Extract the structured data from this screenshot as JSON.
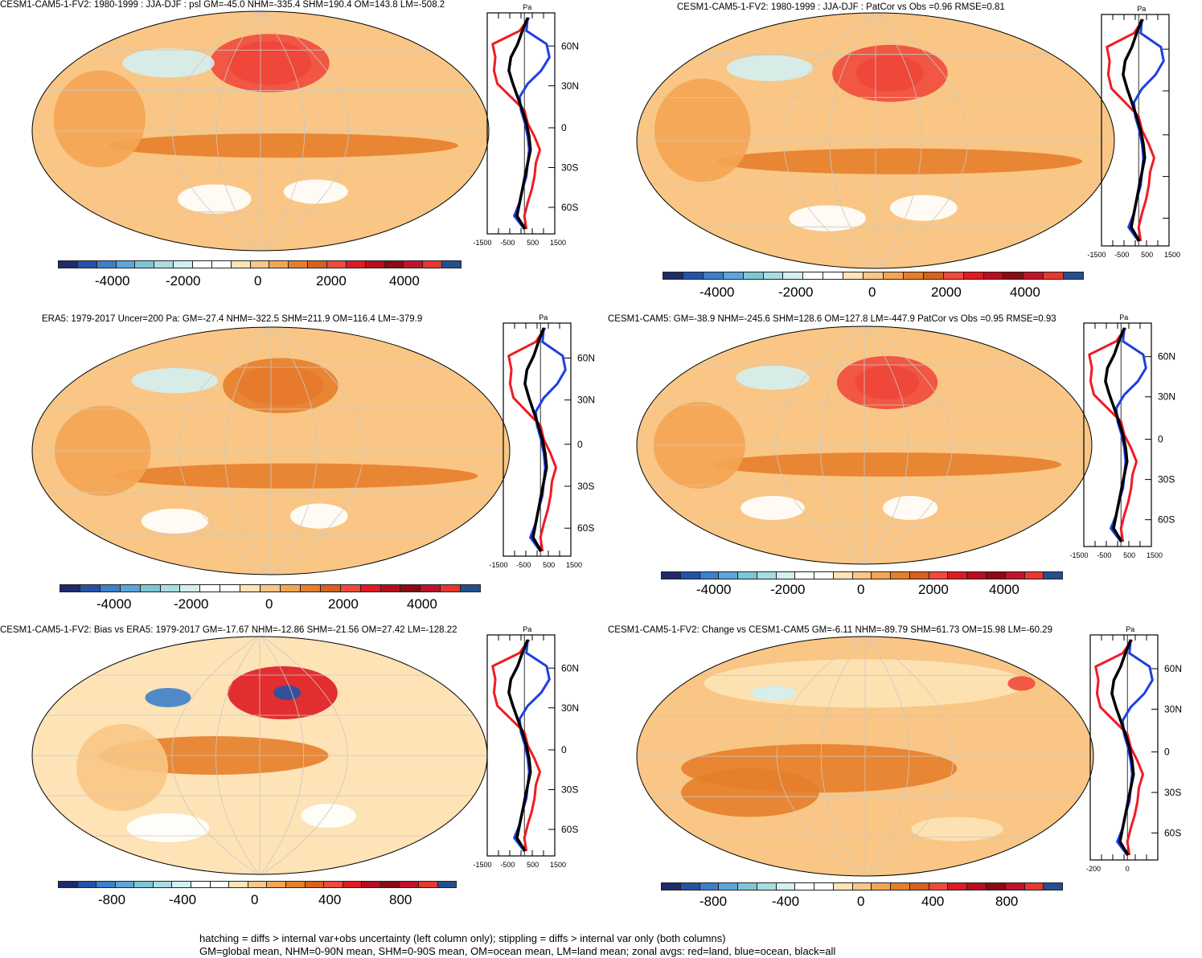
{
  "panels": [
    {
      "title": "CESM1-CAM5-1-FV2: 1980-1999 : JJA-DJF : psl GM=-45.0 NHM=-335.4 SHM=190.4 OM=143.8 LM=-508.2",
      "colorbar_labels": [
        "-4000",
        "-2000",
        "0",
        "2000",
        "4000"
      ],
      "zonal_unit": "Pa",
      "lat_labels": [
        "60N",
        "30N",
        "0",
        "30S",
        "60S"
      ],
      "x_ticks": [
        "-1500",
        "-500",
        "500",
        "1500"
      ]
    },
    {
      "title": "CESM1-CAM5-1-FV2: 1980-1999 : JJA-DJF : PatCor vs Obs =0.96 RMSE=0.81",
      "colorbar_labels": [
        "-4000",
        "-2000",
        "0",
        "2000",
        "4000"
      ],
      "zonal_unit": "Pa",
      "lat_labels": [],
      "x_ticks": [
        "-1500",
        "-500",
        "500",
        "1500"
      ]
    },
    {
      "title": "ERA5: 1979-2017 Uncer=200 Pa: GM=-27.4 NHM=-322.5 SHM=211.9 OM=116.4 LM=-379.9",
      "colorbar_labels": [
        "-4000",
        "-2000",
        "0",
        "2000",
        "4000"
      ],
      "zonal_unit": "Pa",
      "lat_labels": [
        "60N",
        "30N",
        "0",
        "30S",
        "60S"
      ],
      "x_ticks": [
        "-1500",
        "-500",
        "500",
        "1500"
      ]
    },
    {
      "title": "CESM1-CAM5: GM=-38.9 NHM=-245.6 SHM=128.6 OM=127.8 LM=-447.9 PatCor vs Obs =0.95 RMSE=0.93",
      "colorbar_labels": [
        "-4000",
        "-2000",
        "0",
        "2000",
        "4000"
      ],
      "zonal_unit": "Pa",
      "lat_labels": [
        "60N",
        "30N",
        "0",
        "30S",
        "60S"
      ],
      "x_ticks": [
        "-1500",
        "-500",
        "500",
        "1500"
      ]
    },
    {
      "title": "CESM1-CAM5-1-FV2: Bias vs ERA5: 1979-2017 GM=-17.67 NHM=-12.86 SHM=-21.56 OM=27.42 LM=-128.22",
      "colorbar_labels": [
        "-800",
        "-400",
        "0",
        "400",
        "800"
      ],
      "zonal_unit": "Pa",
      "lat_labels": [
        "60N",
        "30N",
        "0",
        "30S",
        "60S"
      ],
      "x_ticks": [
        "-1500",
        "-500",
        "500",
        "1500"
      ]
    },
    {
      "title": "CESM1-CAM5-1-FV2: Change vs CESM1-CAM5 GM=-6.11 NHM=-89.79 SHM=61.73 OM=15.98 LM=-60.29",
      "colorbar_labels": [
        "-800",
        "-400",
        "0",
        "400",
        "800"
      ],
      "zonal_unit": "Pa",
      "lat_labels": [
        "60N",
        "30N",
        "0",
        "30S",
        "60S"
      ],
      "x_ticks": [
        "-200",
        "0"
      ]
    }
  ],
  "palette": [
    "#1f2a6b",
    "#2453a6",
    "#3d7fca",
    "#5aa6dd",
    "#7fc6d4",
    "#a8dde1",
    "#d3f0f1",
    "#ffffff",
    "#ffffff",
    "#fde3b6",
    "#f9c685",
    "#f4a553",
    "#e67e2b",
    "#d9601e",
    "#ef4a3c",
    "#e01a22",
    "#b90d1d",
    "#8b0a14",
    "#c0132a",
    "#e8372e",
    "#244f8f"
  ],
  "colors": {
    "land_line": "#ef1c24",
    "ocean_line": "#1f3fe0",
    "all_line": "#000000"
  },
  "footer": {
    "line1": "hatching = diffs > internal var+obs uncertainty (left column only); stippling = diffs > internal var only (both columns)",
    "line2": "GM=global mean, NHM=0-90N mean, SHM=0-90S mean, OM=ocean mean, LM=land mean; zonal avgs: red=land, blue=ocean, black=all"
  }
}
